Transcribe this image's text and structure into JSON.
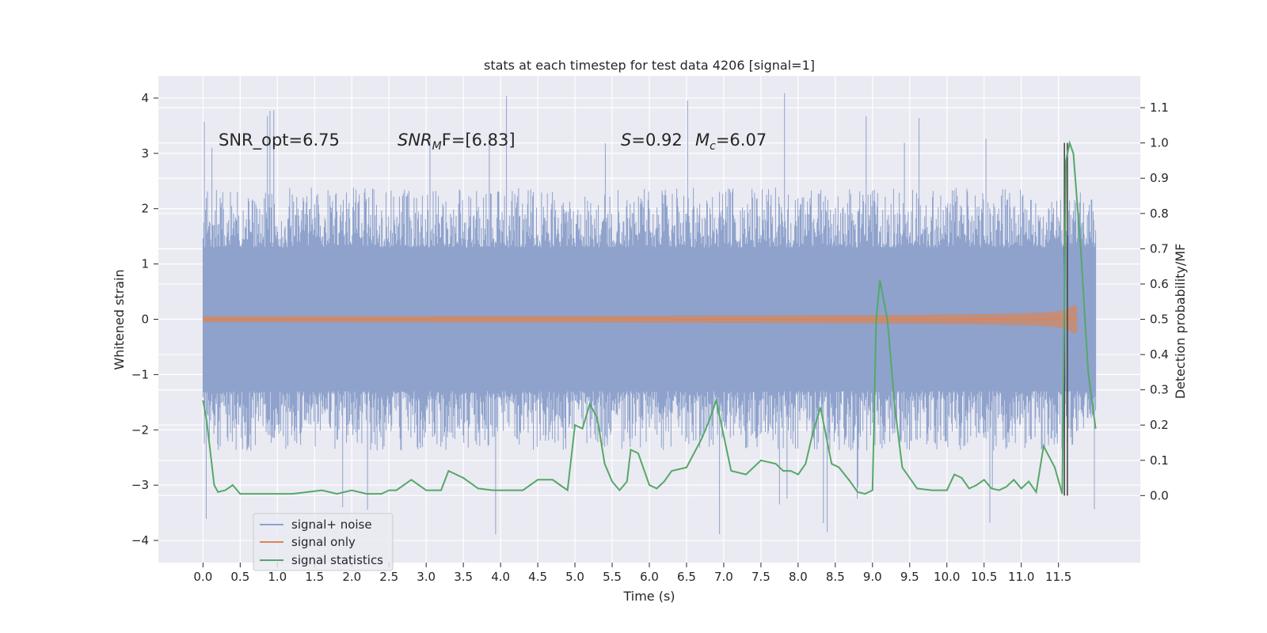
{
  "chart_data": {
    "type": "line",
    "title": "stats at each timestep for test data 4206 [signal=1]",
    "xlabel": "Time (s)",
    "ylabel": "Whitened strain",
    "y2label": "Detection probability/MF",
    "xlim": [
      -0.6,
      12.6
    ],
    "ylim": [
      -4.4,
      4.4
    ],
    "y2lim": [
      -0.19,
      1.19
    ],
    "x_ticks": [
      0.0,
      0.5,
      1.0,
      1.5,
      2.0,
      2.5,
      3.0,
      3.5,
      4.0,
      4.5,
      5.0,
      5.5,
      6.0,
      6.5,
      7.0,
      7.5,
      8.0,
      8.5,
      9.0,
      9.5,
      10.0,
      10.5,
      11.0,
      11.5
    ],
    "x_tick_labels": [
      "0.0",
      "0.5",
      "1.0",
      "1.5",
      "2.0",
      "2.5",
      "3.0",
      "3.5",
      "4.0",
      "4.5",
      "5.0",
      "5.5",
      "6.0",
      "6.5",
      "7.0",
      "7.5",
      "8.0",
      "8.5",
      "9.0",
      "9.5",
      "10.0",
      "10.5",
      "11.0",
      "11.5"
    ],
    "y_ticks": [
      4,
      3,
      2,
      1,
      0,
      -1,
      -2,
      -3,
      -4
    ],
    "y_tick_labels": [
      "4",
      "3",
      "2",
      "1",
      "0",
      "−1",
      "−2",
      "−3",
      "−4"
    ],
    "y2_ticks": [
      1.1,
      1.0,
      0.9,
      0.8,
      0.7,
      0.6,
      0.5,
      0.4,
      0.3,
      0.2,
      0.1,
      0.0
    ],
    "y2_tick_labels": [
      "1.1",
      "1.0",
      "0.9",
      "0.8",
      "0.7",
      "0.6",
      "0.5",
      "0.4",
      "0.3",
      "0.2",
      "0.1",
      "0.0"
    ],
    "grid": true,
    "legend_position": "lower-left",
    "colors": {
      "noise": "#8ea2cc",
      "signal": "#dd8452",
      "stats": "#55a868",
      "background": "#eaeaf2",
      "grid": "#ffffff",
      "marker": "#404040"
    },
    "annotations": {
      "snr_opt": "SNR_opt=6.75",
      "snr_mf_sym": "SNR",
      "snr_mf_sub": "M",
      "snr_mf_rest": "F=[6.83]",
      "s_sym": "S",
      "s_rest": "=0.92",
      "mc_sym": "M",
      "mc_sub": "c",
      "mc_rest": "=6.07"
    },
    "series": [
      {
        "name": "signal+ noise",
        "kind": "noise-band",
        "x_range": [
          0.0,
          12.0
        ],
        "core_band": [
          -1.3,
          1.3
        ],
        "typical_envelope": [
          -2.1,
          2.1
        ],
        "peak_max": 4.1,
        "peak_min": -3.95
      },
      {
        "name": "signal only",
        "kind": "chirp",
        "x_range": [
          0.0,
          11.75
        ],
        "amplitude_end": 0.6,
        "merger_time": 11.7
      },
      {
        "name": "signal statistics",
        "kind": "line",
        "axis": "right",
        "x": [
          0.0,
          0.05,
          0.1,
          0.15,
          0.2,
          0.3,
          0.4,
          0.5,
          0.6,
          0.8,
          1.0,
          1.2,
          1.4,
          1.6,
          1.8,
          2.0,
          2.2,
          2.4,
          2.5,
          2.6,
          2.8,
          3.0,
          3.2,
          3.3,
          3.5,
          3.7,
          3.9,
          4.1,
          4.3,
          4.5,
          4.7,
          4.8,
          4.9,
          5.0,
          5.1,
          5.2,
          5.3,
          5.4,
          5.5,
          5.6,
          5.7,
          5.75,
          5.85,
          6.0,
          6.1,
          6.2,
          6.3,
          6.5,
          6.6,
          6.7,
          6.8,
          6.9,
          7.0,
          7.1,
          7.3,
          7.5,
          7.7,
          7.8,
          7.9,
          8.0,
          8.1,
          8.2,
          8.3,
          8.45,
          8.55,
          8.7,
          8.8,
          8.9,
          9.0,
          9.05,
          9.1,
          9.2,
          9.3,
          9.4,
          9.6,
          9.8,
          10.0,
          10.1,
          10.2,
          10.3,
          10.4,
          10.5,
          10.6,
          10.7,
          10.8,
          10.9,
          11.0,
          11.1,
          11.2,
          11.3,
          11.45,
          11.55,
          11.6,
          11.65,
          11.7,
          11.8,
          11.9,
          12.0
        ],
        "values": [
          0.27,
          0.21,
          0.12,
          0.03,
          0.01,
          0.015,
          0.03,
          0.005,
          0.005,
          0.005,
          0.005,
          0.005,
          0.01,
          0.015,
          0.005,
          0.015,
          0.005,
          0.005,
          0.015,
          0.015,
          0.045,
          0.015,
          0.015,
          0.07,
          0.05,
          0.02,
          0.015,
          0.015,
          0.015,
          0.045,
          0.045,
          0.03,
          0.015,
          0.2,
          0.19,
          0.26,
          0.22,
          0.09,
          0.04,
          0.015,
          0.04,
          0.13,
          0.12,
          0.03,
          0.02,
          0.04,
          0.07,
          0.08,
          0.12,
          0.16,
          0.21,
          0.27,
          0.17,
          0.07,
          0.06,
          0.1,
          0.09,
          0.07,
          0.07,
          0.06,
          0.09,
          0.18,
          0.25,
          0.09,
          0.08,
          0.04,
          0.01,
          0.005,
          0.015,
          0.5,
          0.61,
          0.5,
          0.25,
          0.08,
          0.02,
          0.015,
          0.015,
          0.06,
          0.05,
          0.02,
          0.03,
          0.045,
          0.02,
          0.015,
          0.025,
          0.045,
          0.02,
          0.04,
          0.01,
          0.14,
          0.08,
          0.005,
          0.95,
          1.0,
          0.97,
          0.7,
          0.35,
          0.19
        ]
      }
    ],
    "vertical_markers": [
      11.58,
      11.62
    ]
  }
}
